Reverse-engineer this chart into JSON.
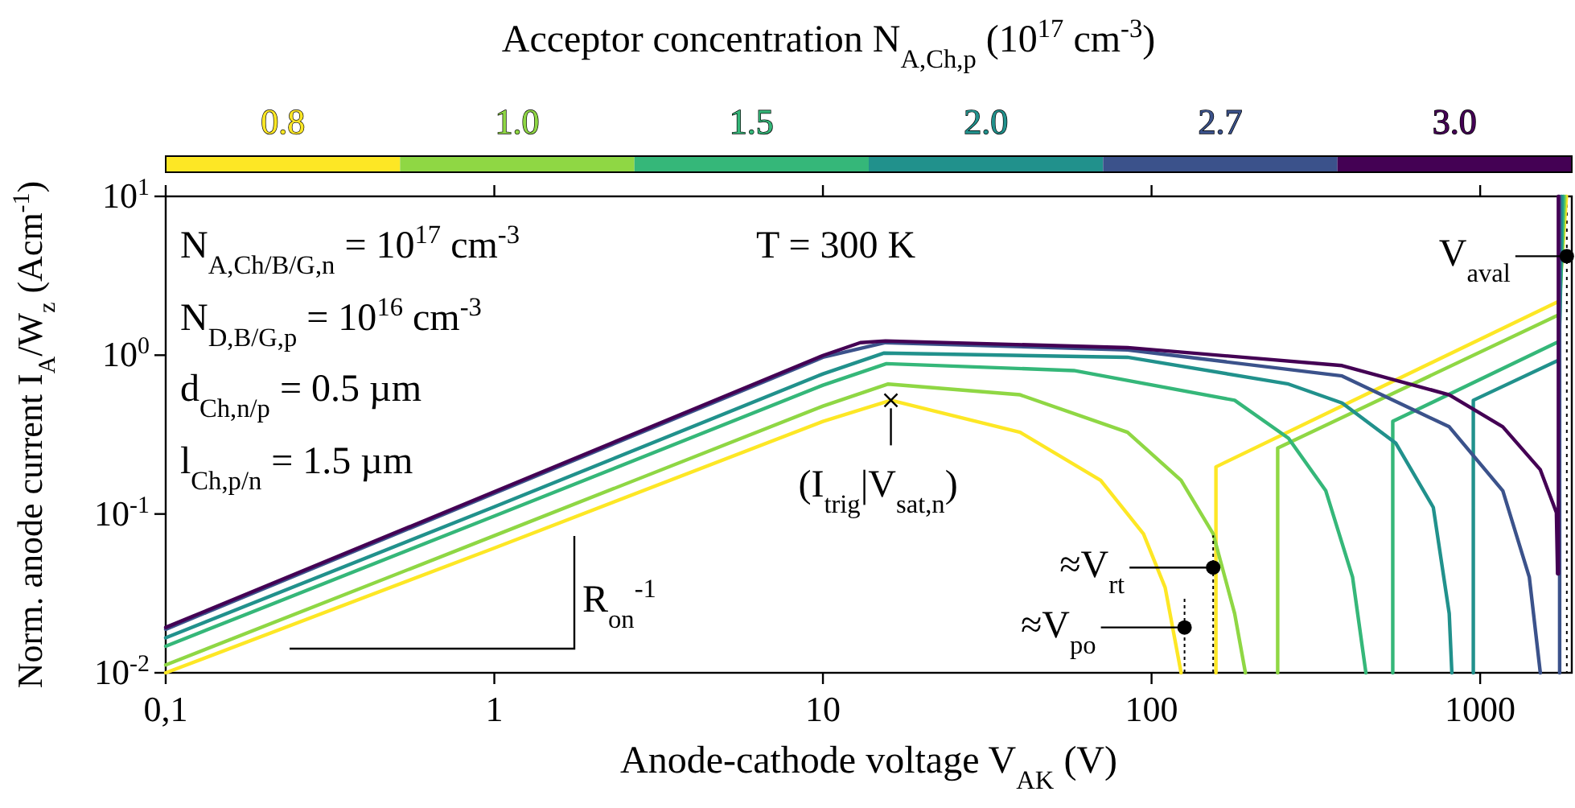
{
  "chart_data": {
    "type": "line",
    "xlabel": "Anode-cathode voltage V$_{AK}$ (V)",
    "ylabel": "Norm. anode current I$_{A}$/W$_{z}$ (Acm$^{-1}$)",
    "legend_title": "Acceptor concentration N$_{A,Ch,p}$ (10$^{17}$ cm$^{-3}$)",
    "legend": "top",
    "log": "xy",
    "grid": false,
    "line_style": "solid",
    "marker": "none",
    "xlim": [
      0.1,
      1900
    ],
    "xticks": [
      {
        "value": 0.1,
        "label": "0,1"
      },
      1,
      10,
      100,
      1000
    ],
    "ylim": [
      0.01,
      10
    ],
    "yticks": [
      {
        "value": 0.01,
        "label": "10$^{-2}$"
      },
      {
        "value": 0.1,
        "label": "10$^{-1}$"
      },
      {
        "value": 1,
        "label": "10$^{0}$"
      },
      {
        "value": 10,
        "label": "10$^{1}$"
      }
    ],
    "series": [
      {
        "name": "0.8",
        "color": "#fde725",
        "x": [
          0.1,
          1,
          10,
          16.1,
          39.8,
          70,
          94.5,
          110,
          123,
          140,
          157,
          157,
          1738,
          1830
        ],
        "values": [
          0.01,
          0.061,
          0.383,
          0.52,
          0.327,
          0.163,
          0.075,
          0.0344,
          0.01,
          null,
          0.01,
          0.198,
          2.19,
          10
        ]
      },
      {
        "name": "1.0",
        "color": "#8fd744",
        "x": [
          0.1,
          1,
          10,
          15.8,
          39.8,
          84.5,
          123,
          154,
          179,
          193,
          220,
          242,
          242,
          1738,
          1810
        ],
        "values": [
          0.0112,
          0.073,
          0.478,
          0.658,
          0.563,
          0.327,
          0.163,
          0.075,
          0.0236,
          0.01,
          null,
          0.01,
          0.26,
          1.8,
          10
        ]
      },
      {
        "name": "1.5",
        "color": "#35b779",
        "x": [
          0.1,
          1,
          10,
          15.6,
          58,
          179,
          261,
          339,
          409,
          449,
          500,
          542,
          542,
          1738,
          1790
        ],
        "values": [
          0.0147,
          0.097,
          0.647,
          0.884,
          0.8,
          0.52,
          0.3,
          0.14,
          0.04,
          0.01,
          null,
          0.01,
          0.383,
          1.22,
          10
        ]
      },
      {
        "name": "2.0",
        "color": "#21918c",
        "x": [
          0.1,
          1,
          10,
          15.3,
          84.5,
          261,
          380,
          553,
          720,
          805,
          820,
          880,
          953,
          953,
          1738,
          1770
        ],
        "values": [
          0.0166,
          0.111,
          0.762,
          1.03,
          0.97,
          0.658,
          0.5,
          0.28,
          0.11,
          0.0236,
          0.01,
          null,
          0.01,
          0.52,
          0.933,
          10
        ]
      },
      {
        "name": "2.7",
        "color": "#3b528b",
        "x": [
          0.1,
          1,
          10,
          15.5,
          84.5,
          380,
          805,
          1172,
          1411,
          1524,
          1600,
          1745,
          1745
        ],
        "values": [
          0.0188,
          0.135,
          0.97,
          1.2,
          1.08,
          0.74,
          0.354,
          0.14,
          0.04,
          0.01,
          null,
          0.01,
          10
        ]
      },
      {
        "name": "3.0",
        "color": "#440154",
        "x": [
          0.1,
          1,
          10,
          13,
          15.5,
          84.5,
          380,
          805,
          1172,
          1524,
          1706,
          1720,
          1730,
          1730
        ],
        "values": [
          0.0193,
          0.138,
          0.995,
          1.2,
          1.23,
          1.116,
          0.86,
          0.563,
          0.354,
          0.19,
          0.102,
          0.042,
          0.042,
          10
        ]
      }
    ],
    "ref_lines": [
      {
        "axis": "x",
        "value": 1835,
        "label": null,
        "color": "#000000",
        "line_style": "dotted"
      }
    ],
    "annotations": [
      "N$_{A,Ch/B/G,n}$ = 10$^{17}$ cm$^{-3}$",
      "N$_{D,B/G,p}$ = 10$^{16}$ cm$^{-3}$",
      "d$_{Ch,n/p}$ = 0.5 µm",
      "l$_{Ch,p/n}$ = 1.5 µm",
      "T = 300 K",
      "R$_{on}$$^{-1}$",
      {
        "text": "(I$_{trig}$|V$_{sat,n}$)",
        "x": 16.1,
        "y": 0.52
      },
      {
        "text": "≈V$_{rt}$",
        "x": 154,
        "y": 0.046
      },
      {
        "text": "≈V$_{po}$",
        "x": 126,
        "y": 0.0193
      },
      {
        "text": "V$_{aval}$",
        "x": 1835,
        "y": 4.2
      }
    ]
  }
}
